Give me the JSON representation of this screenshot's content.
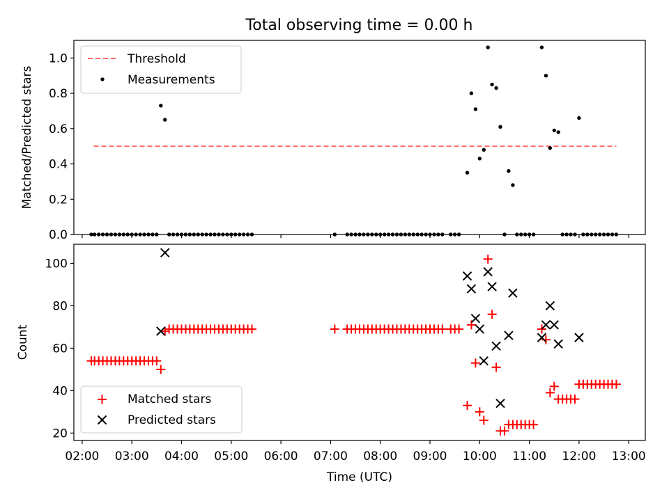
{
  "figure": {
    "title": "Total observing time = 0.00 h"
  },
  "chart_data": [
    {
      "type": "scatter",
      "title": "Total observing time = 0.00 h",
      "xlabel": "",
      "ylabel": "Matched/Predicted stars",
      "xlim": [
        "01:50",
        "13:20"
      ],
      "ylim": [
        0,
        1.1
      ],
      "xticks": [
        "02:00",
        "03:00",
        "04:00",
        "05:00",
        "06:00",
        "07:00",
        "08:00",
        "09:00",
        "10:00",
        "11:00",
        "12:00",
        "13:00"
      ],
      "yticks": [
        "0.0",
        "0.2",
        "0.4",
        "0.6",
        "0.8",
        "1.0"
      ],
      "legend": {
        "placement": "upper-left",
        "entries": [
          "Threshold",
          "Measurements"
        ]
      },
      "threshold": {
        "name": "Threshold",
        "y": 0.5,
        "x_start": "02:14",
        "x_end": "12:45",
        "color": "#ff6b6b",
        "style": "dashed"
      },
      "series": [
        {
          "name": "Measurements",
          "color": "#000000",
          "marker": "dot",
          "points": [
            [
              "02:11",
              0
            ],
            [
              "02:15",
              0
            ],
            [
              "02:20",
              0
            ],
            [
              "02:25",
              0
            ],
            [
              "02:30",
              0
            ],
            [
              "02:35",
              0
            ],
            [
              "02:40",
              0
            ],
            [
              "02:45",
              0
            ],
            [
              "02:50",
              0
            ],
            [
              "02:55",
              0
            ],
            [
              "03:00",
              0
            ],
            [
              "03:05",
              0
            ],
            [
              "03:10",
              0
            ],
            [
              "03:15",
              0
            ],
            [
              "03:20",
              0
            ],
            [
              "03:25",
              0
            ],
            [
              "03:30",
              0
            ],
            [
              "03:35",
              0.73
            ],
            [
              "03:40",
              0.65
            ],
            [
              "03:45",
              0
            ],
            [
              "03:50",
              0
            ],
            [
              "03:55",
              0
            ],
            [
              "04:00",
              0
            ],
            [
              "04:05",
              0
            ],
            [
              "04:10",
              0
            ],
            [
              "04:15",
              0
            ],
            [
              "04:20",
              0
            ],
            [
              "04:25",
              0
            ],
            [
              "04:30",
              0
            ],
            [
              "04:35",
              0
            ],
            [
              "04:40",
              0
            ],
            [
              "04:45",
              0
            ],
            [
              "04:50",
              0
            ],
            [
              "04:55",
              0
            ],
            [
              "05:00",
              0
            ],
            [
              "05:05",
              0
            ],
            [
              "05:10",
              0
            ],
            [
              "05:15",
              0
            ],
            [
              "05:20",
              0
            ],
            [
              "05:25",
              0
            ],
            [
              "07:05",
              0
            ],
            [
              "07:20",
              0
            ],
            [
              "07:25",
              0
            ],
            [
              "07:30",
              0
            ],
            [
              "07:35",
              0
            ],
            [
              "07:40",
              0
            ],
            [
              "07:45",
              0
            ],
            [
              "07:50",
              0
            ],
            [
              "07:55",
              0
            ],
            [
              "08:00",
              0
            ],
            [
              "08:05",
              0
            ],
            [
              "08:10",
              0
            ],
            [
              "08:15",
              0
            ],
            [
              "08:20",
              0
            ],
            [
              "08:25",
              0
            ],
            [
              "08:30",
              0
            ],
            [
              "08:35",
              0
            ],
            [
              "08:40",
              0
            ],
            [
              "08:45",
              0
            ],
            [
              "08:50",
              0
            ],
            [
              "08:55",
              0
            ],
            [
              "09:00",
              0
            ],
            [
              "09:05",
              0
            ],
            [
              "09:10",
              0
            ],
            [
              "09:15",
              0
            ],
            [
              "09:25",
              0
            ],
            [
              "09:30",
              0
            ],
            [
              "09:35",
              0
            ],
            [
              "09:45",
              0.35
            ],
            [
              "09:50",
              0.8
            ],
            [
              "09:55",
              0.71
            ],
            [
              "10:00",
              0.43
            ],
            [
              "10:05",
              0.48
            ],
            [
              "10:10",
              1.06
            ],
            [
              "10:15",
              0.85
            ],
            [
              "10:20",
              0.83
            ],
            [
              "10:25",
              0.61
            ],
            [
              "10:30",
              0
            ],
            [
              "10:35",
              0.36
            ],
            [
              "10:40",
              0.28
            ],
            [
              "10:45",
              0
            ],
            [
              "10:50",
              0
            ],
            [
              "10:55",
              0
            ],
            [
              "11:00",
              0
            ],
            [
              "11:05",
              0
            ],
            [
              "11:15",
              1.06
            ],
            [
              "11:20",
              0.9
            ],
            [
              "11:25",
              0.49
            ],
            [
              "11:30",
              0.59
            ],
            [
              "11:35",
              0.58
            ],
            [
              "11:40",
              0
            ],
            [
              "11:45",
              0
            ],
            [
              "11:50",
              0
            ],
            [
              "11:55",
              0
            ],
            [
              "12:00",
              0.66
            ],
            [
              "12:05",
              0
            ],
            [
              "12:10",
              0
            ],
            [
              "12:15",
              0
            ],
            [
              "12:20",
              0
            ],
            [
              "12:25",
              0
            ],
            [
              "12:30",
              0
            ],
            [
              "12:35",
              0
            ],
            [
              "12:40",
              0
            ],
            [
              "12:45",
              0
            ]
          ]
        }
      ]
    },
    {
      "type": "scatter",
      "title": "",
      "xlabel": "Time (UTC)",
      "ylabel": "Count",
      "xlim": [
        "01:50",
        "13:20"
      ],
      "ylim": [
        16.5,
        109
      ],
      "xticks": [
        "02:00",
        "03:00",
        "04:00",
        "05:00",
        "06:00",
        "07:00",
        "08:00",
        "09:00",
        "10:00",
        "11:00",
        "12:00",
        "13:00"
      ],
      "yticks": [
        "20",
        "40",
        "60",
        "80",
        "100"
      ],
      "legend": {
        "placement": "lower-left",
        "entries": [
          "Matched stars",
          "Predicted stars"
        ]
      },
      "series": [
        {
          "name": "Matched stars",
          "color": "#ff0000",
          "marker": "plus",
          "points": [
            [
              "02:11",
              54
            ],
            [
              "02:15",
              54
            ],
            [
              "02:20",
              54
            ],
            [
              "02:25",
              54
            ],
            [
              "02:30",
              54
            ],
            [
              "02:35",
              54
            ],
            [
              "02:40",
              54
            ],
            [
              "02:45",
              54
            ],
            [
              "02:50",
              54
            ],
            [
              "02:55",
              54
            ],
            [
              "03:00",
              54
            ],
            [
              "03:05",
              54
            ],
            [
              "03:10",
              54
            ],
            [
              "03:15",
              54
            ],
            [
              "03:20",
              54
            ],
            [
              "03:25",
              54
            ],
            [
              "03:30",
              54
            ],
            [
              "03:35",
              50
            ],
            [
              "03:40",
              68
            ],
            [
              "03:45",
              69
            ],
            [
              "03:50",
              69
            ],
            [
              "03:55",
              69
            ],
            [
              "04:00",
              69
            ],
            [
              "04:05",
              69
            ],
            [
              "04:10",
              69
            ],
            [
              "04:15",
              69
            ],
            [
              "04:20",
              69
            ],
            [
              "04:25",
              69
            ],
            [
              "04:30",
              69
            ],
            [
              "04:35",
              69
            ],
            [
              "04:40",
              69
            ],
            [
              "04:45",
              69
            ],
            [
              "04:50",
              69
            ],
            [
              "04:55",
              69
            ],
            [
              "05:00",
              69
            ],
            [
              "05:05",
              69
            ],
            [
              "05:10",
              69
            ],
            [
              "05:15",
              69
            ],
            [
              "05:20",
              69
            ],
            [
              "05:25",
              69
            ],
            [
              "07:05",
              69
            ],
            [
              "07:20",
              69
            ],
            [
              "07:25",
              69
            ],
            [
              "07:30",
              69
            ],
            [
              "07:35",
              69
            ],
            [
              "07:40",
              69
            ],
            [
              "07:45",
              69
            ],
            [
              "07:50",
              69
            ],
            [
              "07:55",
              69
            ],
            [
              "08:00",
              69
            ],
            [
              "08:05",
              69
            ],
            [
              "08:10",
              69
            ],
            [
              "08:15",
              69
            ],
            [
              "08:20",
              69
            ],
            [
              "08:25",
              69
            ],
            [
              "08:30",
              69
            ],
            [
              "08:35",
              69
            ],
            [
              "08:40",
              69
            ],
            [
              "08:45",
              69
            ],
            [
              "08:50",
              69
            ],
            [
              "08:55",
              69
            ],
            [
              "09:00",
              69
            ],
            [
              "09:05",
              69
            ],
            [
              "09:10",
              69
            ],
            [
              "09:15",
              69
            ],
            [
              "09:25",
              69
            ],
            [
              "09:30",
              69
            ],
            [
              "09:35",
              69
            ],
            [
              "09:45",
              33
            ],
            [
              "09:50",
              71
            ],
            [
              "09:55",
              53
            ],
            [
              "10:00",
              30
            ],
            [
              "10:05",
              26
            ],
            [
              "10:10",
              102
            ],
            [
              "10:15",
              76
            ],
            [
              "10:20",
              51
            ],
            [
              "10:25",
              21
            ],
            [
              "10:30",
              21
            ],
            [
              "10:35",
              24
            ],
            [
              "10:40",
              24
            ],
            [
              "10:45",
              24
            ],
            [
              "10:50",
              24
            ],
            [
              "10:55",
              24
            ],
            [
              "11:00",
              24
            ],
            [
              "11:05",
              24
            ],
            [
              "11:15",
              69
            ],
            [
              "11:20",
              64
            ],
            [
              "11:25",
              39
            ],
            [
              "11:30",
              42
            ],
            [
              "11:35",
              36
            ],
            [
              "11:40",
              36
            ],
            [
              "11:45",
              36
            ],
            [
              "11:50",
              36
            ],
            [
              "11:55",
              36
            ],
            [
              "12:00",
              43
            ],
            [
              "12:05",
              43
            ],
            [
              "12:10",
              43
            ],
            [
              "12:15",
              43
            ],
            [
              "12:20",
              43
            ],
            [
              "12:25",
              43
            ],
            [
              "12:30",
              43
            ],
            [
              "12:35",
              43
            ],
            [
              "12:40",
              43
            ],
            [
              "12:45",
              43
            ]
          ]
        },
        {
          "name": "Predicted stars",
          "color": "#000000",
          "marker": "x",
          "points": [
            [
              "03:35",
              68
            ],
            [
              "03:40",
              105
            ],
            [
              "09:45",
              94
            ],
            [
              "09:50",
              88
            ],
            [
              "09:55",
              74
            ],
            [
              "10:00",
              69
            ],
            [
              "10:05",
              54
            ],
            [
              "10:10",
              96
            ],
            [
              "10:15",
              89
            ],
            [
              "10:20",
              61
            ],
            [
              "10:25",
              34
            ],
            [
              "10:35",
              66
            ],
            [
              "10:40",
              86
            ],
            [
              "11:15",
              65
            ],
            [
              "11:20",
              71
            ],
            [
              "11:25",
              80
            ],
            [
              "11:30",
              71
            ],
            [
              "11:35",
              62
            ],
            [
              "12:00",
              65
            ]
          ]
        }
      ]
    }
  ]
}
